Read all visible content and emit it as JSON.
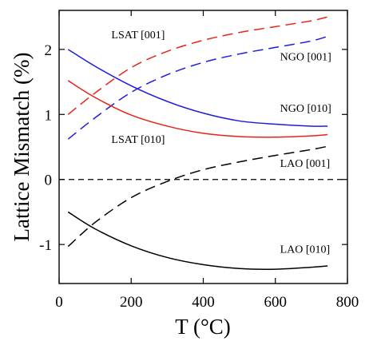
{
  "chart_data": {
    "type": "line",
    "title": "",
    "xlabel": "T (°C)",
    "ylabel": "Lattice Mismatch (%)",
    "xlim": [
      0,
      800
    ],
    "ylim": [
      -1.6,
      2.6
    ],
    "xticks": [
      0,
      200,
      400,
      600,
      800
    ],
    "yticks": [
      -1,
      0,
      1,
      2
    ],
    "xtick_labels": [
      "0",
      "200",
      "400",
      "600",
      "800"
    ],
    "ytick_labels": [
      "-1",
      "0",
      "1",
      "2"
    ],
    "grid": false,
    "legend": "none",
    "reference_line": {
      "y": 0,
      "style": "dashed",
      "color": "#000000"
    },
    "series": [
      {
        "name": "LSAT [001]",
        "color": "#e8231a",
        "dash": true,
        "x": [
          25,
          100,
          200,
          300,
          400,
          500,
          600,
          700,
          745
        ],
        "y": [
          1.0,
          1.33,
          1.72,
          1.97,
          2.14,
          2.26,
          2.35,
          2.44,
          2.5
        ]
      },
      {
        "name": "NGO [001]",
        "color": "#1c1ce0",
        "dash": true,
        "x": [
          25,
          100,
          200,
          300,
          400,
          500,
          600,
          700,
          745
        ],
        "y": [
          0.62,
          0.95,
          1.34,
          1.61,
          1.8,
          1.93,
          2.03,
          2.13,
          2.2
        ]
      },
      {
        "name": "NGO [010]",
        "color": "#1c1ce0",
        "dash": false,
        "x": [
          25,
          100,
          200,
          300,
          400,
          500,
          600,
          700,
          745
        ],
        "y": [
          2.0,
          1.74,
          1.44,
          1.2,
          1.02,
          0.9,
          0.85,
          0.82,
          0.82
        ]
      },
      {
        "name": "LSAT [010]",
        "color": "#e8231a",
        "dash": false,
        "x": [
          25,
          100,
          200,
          300,
          400,
          500,
          600,
          700,
          745
        ],
        "y": [
          1.52,
          1.26,
          0.99,
          0.82,
          0.71,
          0.66,
          0.65,
          0.67,
          0.69
        ]
      },
      {
        "name": "LAO [001]",
        "color": "#000000",
        "dash": true,
        "x": [
          25,
          100,
          200,
          300,
          400,
          500,
          600,
          700,
          745
        ],
        "y": [
          -1.03,
          -0.66,
          -0.28,
          -0.03,
          0.15,
          0.27,
          0.37,
          0.46,
          0.51
        ]
      },
      {
        "name": "LAO [010]",
        "color": "#000000",
        "dash": false,
        "x": [
          25,
          100,
          200,
          300,
          400,
          500,
          600,
          700,
          745
        ],
        "y": [
          -0.5,
          -0.76,
          -1.02,
          -1.2,
          -1.31,
          -1.37,
          -1.38,
          -1.35,
          -1.33
        ]
      }
    ],
    "annotations": [
      {
        "text": "LSAT [001]",
        "series": "LSAT [001]",
        "x": 145,
        "y": 2.17
      },
      {
        "text": "NGO [001]",
        "series": "NGO [001]",
        "x": 613,
        "y": 1.83
      },
      {
        "text": "NGO [010]",
        "series": "NGO [010]",
        "x": 613,
        "y": 1.04
      },
      {
        "text": "LSAT [010]",
        "series": "LSAT [010]",
        "x": 145,
        "y": 0.56
      },
      {
        "text": "LAO [001]",
        "series": "LAO [001]",
        "x": 613,
        "y": 0.19
      },
      {
        "text": "LAO [010]",
        "series": "LAO [010]",
        "x": 613,
        "y": -1.13
      }
    ]
  }
}
